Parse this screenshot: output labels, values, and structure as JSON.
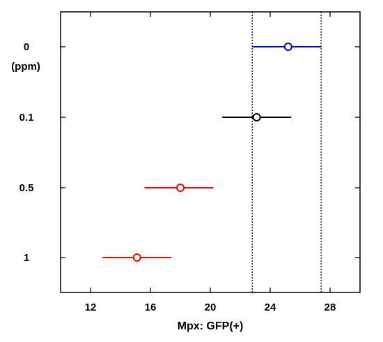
{
  "chart_data": {
    "type": "scatter",
    "xlabel": "Mpx: GFP(+)",
    "xlim": [
      10,
      30
    ],
    "xticks": [
      12,
      16,
      20,
      24,
      28
    ],
    "ylabel": "",
    "unit_label": "(ppm)",
    "categories": [
      "0",
      "0.1",
      "0.5",
      "1"
    ],
    "series": [
      {
        "category": "0",
        "mean": 25.2,
        "ci": [
          22.8,
          27.4
        ],
        "color": "#0000cc"
      },
      {
        "category": "0.1",
        "mean": 23.1,
        "ci": [
          20.8,
          25.4
        ],
        "color": "#000000"
      },
      {
        "category": "0.5",
        "mean": 18.0,
        "ci": [
          15.6,
          20.2
        ],
        "color": "#ff0000"
      },
      {
        "category": "1",
        "mean": 15.1,
        "ci": [
          12.8,
          17.4
        ],
        "color": "#ff0000"
      }
    ],
    "reference_lines": [
      22.8,
      27.4
    ],
    "grid": false,
    "legend": "none"
  }
}
